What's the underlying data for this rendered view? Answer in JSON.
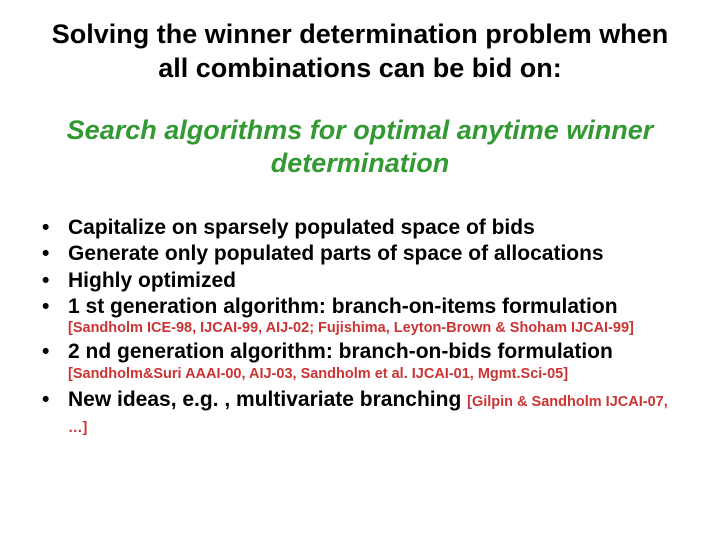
{
  "colors": {
    "subtitle": "#339933",
    "ref": "#cc3333",
    "text": "#000000",
    "background": "#ffffff"
  },
  "typography": {
    "title_fontsize": 27,
    "subtitle_fontsize": 27,
    "bullet_fontsize": 21,
    "ref_fontsize": 14.5,
    "font_family": "Arial"
  },
  "title": "Solving the winner determination problem when all combinations can be bid on:",
  "subtitle": "Search algorithms for optimal anytime winner determination",
  "bullets": {
    "b1": "Capitalize on sparsely populated space of bids",
    "b2": "Generate only populated parts of space of allocations",
    "b3": "Highly optimized",
    "b4": "1 st generation algorithm: branch-on-items formulation",
    "b4_ref": "[Sandholm ICE-98, IJCAI-99, AIJ-02; Fujishima, Leyton-Brown & Shoham IJCAI-99]",
    "b5": "2 nd generation algorithm: branch-on-bids formulation",
    "b5_ref": "[Sandholm&Suri AAAI-00, AIJ-03, Sandholm et al. IJCAI-01, Mgmt.Sci-05]",
    "b6_lead": "New ideas, e.g. , multivariate branching ",
    "b6_ref": "[Gilpin & Sandholm IJCAI-07, …]"
  }
}
